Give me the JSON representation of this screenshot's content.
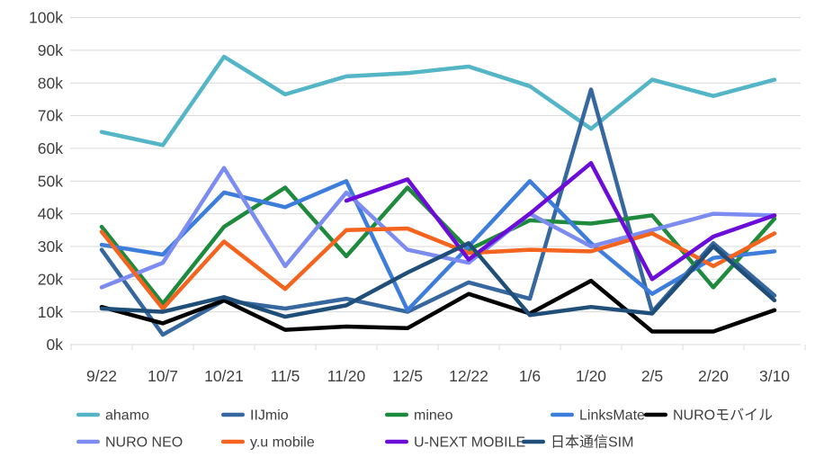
{
  "chart_data": {
    "type": "line",
    "title": "",
    "unit": "thousands (k)",
    "categories": [
      "9/22",
      "10/7",
      "10/21",
      "11/5",
      "11/20",
      "12/5",
      "12/22",
      "1/6",
      "1/20",
      "2/5",
      "2/20",
      "3/10"
    ],
    "y_tick_labels": [
      "0k",
      "10k",
      "20k",
      "30k",
      "40k",
      "50k",
      "60k",
      "70k",
      "80k",
      "90k",
      "100k"
    ],
    "ylim": [
      0,
      100000
    ],
    "grid": "horizontal",
    "legend_position": "bottom",
    "axis_text_color": "#3F3F3F",
    "gridline_color": "#D9D9D9",
    "series": [
      {
        "name": "ahamo",
        "color": "#53B5C5",
        "values": [
          65,
          61,
          88,
          76.5,
          82,
          83,
          85,
          79,
          66,
          81,
          76,
          81
        ]
      },
      {
        "name": "IIJmio",
        "color": "#36689F",
        "values": [
          29,
          3,
          13.5,
          11,
          14,
          10,
          19,
          14,
          78,
          10,
          31,
          15
        ]
      },
      {
        "name": "mineo",
        "color": "#1E8A3D",
        "values": [
          36,
          12.5,
          36,
          48,
          27,
          48,
          29,
          38,
          37,
          39.5,
          17.5,
          38.5
        ]
      },
      {
        "name": "LinksMate",
        "color": "#3D7DDB",
        "values": [
          30.5,
          27.5,
          46.5,
          42,
          50,
          10.5,
          30,
          50,
          31,
          15.5,
          26.5,
          28.5
        ]
      },
      {
        "name": "NUROモバイル",
        "color": "#000000",
        "values": [
          11.5,
          6.5,
          13.5,
          4.5,
          5.5,
          5,
          15.5,
          9.5,
          19.5,
          4,
          4,
          10.5
        ]
      },
      {
        "name": "NURO NEO",
        "color": "#7C8CF0",
        "values": [
          17.5,
          25,
          54,
          24,
          46.5,
          29,
          25,
          40,
          30,
          35,
          40,
          39.5
        ]
      },
      {
        "name": "y.u mobile",
        "color": "#F4641E",
        "values": [
          34.5,
          11,
          31.5,
          17,
          35,
          35.5,
          28,
          29,
          28.5,
          34,
          24,
          34
        ]
      },
      {
        "name": "U-NEXT MOBILE",
        "color": "#6C0CD9",
        "values": [
          null,
          null,
          null,
          null,
          44,
          50.5,
          26,
          40,
          55.5,
          20,
          33,
          39.5
        ]
      },
      {
        "name": "日本通信SIM",
        "color": "#1F4E79",
        "values": [
          11,
          10,
          14.5,
          8.5,
          12,
          22,
          31,
          9,
          11.5,
          9.5,
          30,
          13.5
        ]
      }
    ]
  }
}
